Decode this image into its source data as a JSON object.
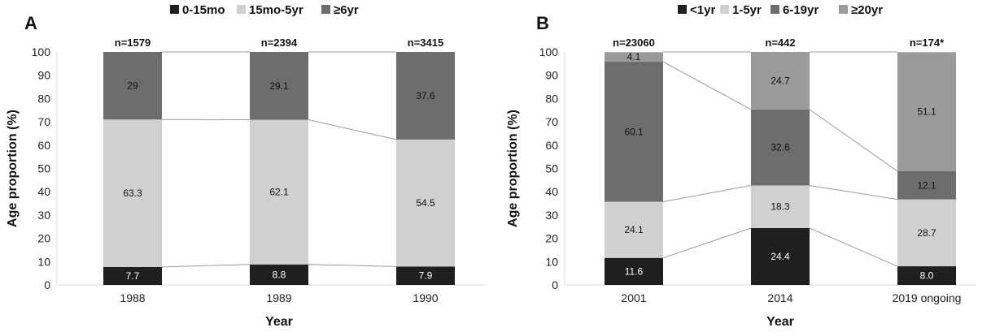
{
  "chart_data": [
    {
      "type": "bar",
      "stacked": true,
      "panel_label": "A",
      "xlabel": "Year",
      "ylabel": "Age proportion (%)",
      "ylim": [
        0,
        100
      ],
      "yticks": [
        0,
        10,
        20,
        30,
        40,
        50,
        60,
        70,
        80,
        90,
        100
      ],
      "grid": false,
      "legend_position": "top",
      "categories": [
        "1988",
        "1989",
        "1990"
      ],
      "n_labels": [
        "n=1579",
        "n=2394",
        "n=3415"
      ],
      "series": [
        {
          "name": "0-15mo",
          "color": "#1f1f1f",
          "values": [
            7.7,
            8.8,
            7.9
          ],
          "labels": [
            "7.7",
            "8.8",
            "7.9"
          ]
        },
        {
          "name": "15mo-5yr",
          "color": "#d0d0d0",
          "values": [
            63.3,
            62.1,
            54.5
          ],
          "labels": [
            "63.3",
            "62.1",
            "54.5"
          ]
        },
        {
          "name": "≥6yr",
          "color": "#6d6d6d",
          "values": [
            29,
            29.1,
            37.6
          ],
          "labels": [
            "29",
            "29.1",
            "37.6"
          ]
        }
      ]
    },
    {
      "type": "bar",
      "stacked": true,
      "panel_label": "B",
      "xlabel": "Year",
      "ylabel": "Age proportion (%)",
      "ylim": [
        0,
        100
      ],
      "yticks": [
        0,
        10,
        20,
        30,
        40,
        50,
        60,
        70,
        80,
        90,
        100
      ],
      "grid": false,
      "legend_position": "top",
      "categories": [
        "2001",
        "2014",
        "2019 ongoing"
      ],
      "n_labels": [
        "n=23060",
        "n=442",
        "n=174*"
      ],
      "series": [
        {
          "name": "<1yr",
          "color": "#1f1f1f",
          "values": [
            11.6,
            24.4,
            8.0
          ],
          "labels": [
            "11.6",
            "24.4",
            "8.0"
          ]
        },
        {
          "name": "1-5yr",
          "color": "#d0d0d0",
          "values": [
            24.1,
            18.3,
            28.7
          ],
          "labels": [
            "24.1",
            "18.3",
            "28.7"
          ]
        },
        {
          "name": "6-19yr",
          "color": "#6d6d6d",
          "values": [
            60.1,
            32.6,
            12.1
          ],
          "labels": [
            "60.1",
            "32.6",
            "12.1"
          ]
        },
        {
          "name": "≥20yr",
          "color": "#9a9a9a",
          "values": [
            4.1,
            24.7,
            51.1
          ],
          "labels": [
            "4.1",
            "24.7",
            "51.1"
          ]
        }
      ]
    }
  ]
}
